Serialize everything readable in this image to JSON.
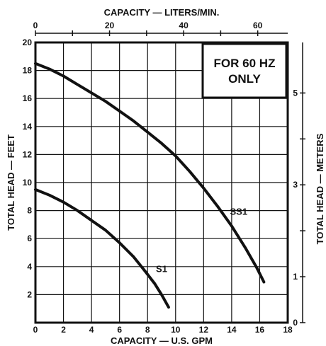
{
  "chart_data": {
    "type": "line",
    "title": "",
    "xlabel": "CAPACITY — U.S. GPM",
    "ylabel": "TOTAL HEAD — FEET",
    "x2label": "CAPACITY — LITERS/MIN.",
    "y2label": "TOTAL HEAD — METERS",
    "xlim": [
      0,
      18
    ],
    "ylim": [
      0,
      20
    ],
    "x2lim": [
      0,
      68.1
    ],
    "y2lim": [
      0,
      6.1
    ],
    "grid": true,
    "x_ticks": [
      0,
      2,
      4,
      6,
      8,
      10,
      12,
      14,
      16,
      18
    ],
    "x_tick_labels": [
      "0",
      "2",
      "4",
      "6",
      "8",
      "10",
      "12",
      "14",
      "16",
      "18"
    ],
    "y_ticks": [
      2,
      4,
      6,
      8,
      10,
      12,
      14,
      16,
      18,
      20
    ],
    "y_tick_labels": [
      "2",
      "4",
      "6",
      "8",
      "10",
      "12",
      "14",
      "16",
      "18",
      "20"
    ],
    "x2_ticks": [
      0,
      10,
      20,
      30,
      40,
      50,
      60
    ],
    "x2_tick_labels": [
      "0",
      "",
      "20",
      "",
      "40",
      "",
      "60"
    ],
    "y2_ticks": [
      0,
      1,
      2,
      3,
      4,
      5
    ],
    "y2_tick_labels": [
      "0",
      "1",
      "",
      "3",
      "",
      "5"
    ],
    "annotation": {
      "line1": "FOR 60 HZ",
      "line2": "ONLY"
    },
    "series": [
      {
        "name": "SS1",
        "x": [
          0,
          1,
          2,
          3,
          4,
          5,
          6,
          7,
          8,
          9,
          10,
          11,
          12,
          13,
          14,
          15,
          15.8,
          16.3
        ],
        "y": [
          18.5,
          18.1,
          17.6,
          17.0,
          16.4,
          15.8,
          15.1,
          14.4,
          13.6,
          12.8,
          11.9,
          10.8,
          9.6,
          8.3,
          6.9,
          5.3,
          3.9,
          2.9
        ]
      },
      {
        "name": "S1",
        "x": [
          0,
          1,
          2,
          3,
          4,
          5,
          6,
          7,
          7.8,
          8.5,
          9.0,
          9.5
        ],
        "y": [
          9.5,
          9.1,
          8.6,
          8.0,
          7.3,
          6.6,
          5.7,
          4.7,
          3.7,
          2.8,
          2.0,
          1.1
        ]
      }
    ]
  }
}
